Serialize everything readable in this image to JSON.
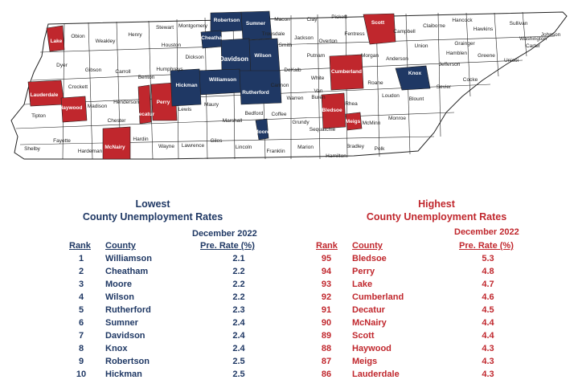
{
  "colors": {
    "lowest": "#1f3864",
    "highest": "#c0272d",
    "neutral": "#ffffff",
    "border": "#222222"
  },
  "map": {
    "labels": {
      "lake": "Lake",
      "obion": "Obion",
      "weakley": "Weakley",
      "henry": "Henry",
      "stewart": "Stewart",
      "montgomery": "Montgomery",
      "robertson": "Robertson",
      "sumner": "Sumner",
      "macon": "Macon",
      "clay": "Clay",
      "pickett": "Pickett",
      "scott": "Scott",
      "campbell": "Campbell",
      "claiborne": "Claiborne",
      "hancock": "Hancock",
      "sullivan": "Sullivan",
      "johnson": "Johnson",
      "cheatham": "Cheatham",
      "trousdale": "Trousdale",
      "jackson": "Jackson",
      "overton": "Overton",
      "fentress": "Fentress",
      "union": "Union",
      "grainger": "Grainger",
      "hawkins": "Hawkins",
      "washington": "Washington",
      "carter": "Carter",
      "dyer": "Dyer",
      "gibson": "Gibson",
      "carroll": "Carroll",
      "houston": "Houston",
      "dickson": "Dickson",
      "davidson": "Davidson",
      "wilson": "Wilson",
      "smith": "Smith",
      "putnam": "Putnam",
      "morgan": "Morgan",
      "anderson": "Anderson",
      "hamblen": "Hamblen",
      "jefferson": "Jefferson",
      "greene": "Greene",
      "unicoi": "Unicoi",
      "lauderdale": "Lauderdale",
      "crockett": "Crockett",
      "haywood": "Haywood",
      "madison": "Madison",
      "benton": "Benton",
      "humphreys": "Humphreys",
      "hickman": "Hickman",
      "williamson": "Williamson",
      "rutherford": "Rutherford",
      "dekalb": "DeKalb",
      "white": "White",
      "cumberland": "Cumberland",
      "roane": "Roane",
      "knox": "Knox",
      "sevier": "Sevier",
      "cocke": "Cocke",
      "tipton": "Tipton",
      "henderson": "Henderson",
      "decatur": "Decatur",
      "perry": "Perry",
      "lewis": "Lewis",
      "maury": "Maury",
      "cannon": "Cannon",
      "warren": "Warren",
      "vanburen": "Van\nBuren",
      "bledsoe": "Bledsoe",
      "rhea": "Rhea",
      "loudon": "Loudon",
      "blount": "Blount",
      "chester": "Chester",
      "marshall": "Marshall",
      "bedford": "Bedford",
      "coffee": "Coffee",
      "grundy": "Grundy",
      "sequatchie": "Sequatchie",
      "meigs": "Meigs",
      "mcminn": "McMinn",
      "monroe": "Monroe",
      "shelby": "Shelby",
      "fayette": "Fayette",
      "hardeman": "Hardeman",
      "mcnairy": "McNairy",
      "hardin": "Hardin",
      "wayne": "Wayne",
      "lawrence": "Lawrence",
      "giles": "Giles",
      "moore": "Moore",
      "lincoln": "Lincoln",
      "franklin": "Franklin",
      "marion": "Marion",
      "hamilton": "Hamilton",
      "bradley": "Bradley",
      "polk": "Polk"
    },
    "lowest_counties": [
      "Williamson",
      "Cheatham",
      "Moore",
      "Wilson",
      "Rutherford",
      "Sumner",
      "Davidson",
      "Knox",
      "Robertson",
      "Hickman"
    ],
    "highest_counties": [
      "Bledsoe",
      "Perry",
      "Lake",
      "Cumberland",
      "Decatur",
      "McNairy",
      "Scott",
      "Haywood",
      "Meigs",
      "Lauderdale"
    ]
  },
  "lowest": {
    "title_line1": "Lowest",
    "title_line2": "County Unemployment Rates",
    "date": "December 2022",
    "col_rank": "Rank",
    "col_county": "County",
    "col_rate": "Pre. Rate (%)",
    "rows": [
      {
        "rank": "1",
        "county": "Williamson",
        "rate": "2.1"
      },
      {
        "rank": "2",
        "county": "Cheatham",
        "rate": "2.2"
      },
      {
        "rank": "3",
        "county": "Moore",
        "rate": "2.2"
      },
      {
        "rank": "4",
        "county": "Wilson",
        "rate": "2.2"
      },
      {
        "rank": "5",
        "county": "Rutherford",
        "rate": "2.3"
      },
      {
        "rank": "6",
        "county": "Sumner",
        "rate": "2.4"
      },
      {
        "rank": "7",
        "county": "Davidson",
        "rate": "2.4"
      },
      {
        "rank": "8",
        "county": "Knox",
        "rate": "2.4"
      },
      {
        "rank": "9",
        "county": "Robertson",
        "rate": "2.5"
      },
      {
        "rank": "10",
        "county": "Hickman",
        "rate": "2.5"
      }
    ]
  },
  "highest": {
    "title_line1": "Highest",
    "title_line2": "County Unemployment Rates",
    "date": "December 2022",
    "col_rank": "Rank",
    "col_county": "County",
    "col_rate": "Pre. Rate (%)",
    "rows": [
      {
        "rank": "95",
        "county": "Bledsoe",
        "rate": "5.3"
      },
      {
        "rank": "94",
        "county": "Perry",
        "rate": "4.8"
      },
      {
        "rank": "93",
        "county": "Lake",
        "rate": "4.7"
      },
      {
        "rank": "92",
        "county": "Cumberland",
        "rate": "4.6"
      },
      {
        "rank": "91",
        "county": "Decatur",
        "rate": "4.5"
      },
      {
        "rank": "90",
        "county": "McNairy",
        "rate": "4.4"
      },
      {
        "rank": "89",
        "county": "Scott",
        "rate": "4.4"
      },
      {
        "rank": "88",
        "county": "Haywood",
        "rate": "4.3"
      },
      {
        "rank": "87",
        "county": "Meigs",
        "rate": "4.3"
      },
      {
        "rank": "86",
        "county": "Lauderdale",
        "rate": "4.3"
      }
    ]
  }
}
